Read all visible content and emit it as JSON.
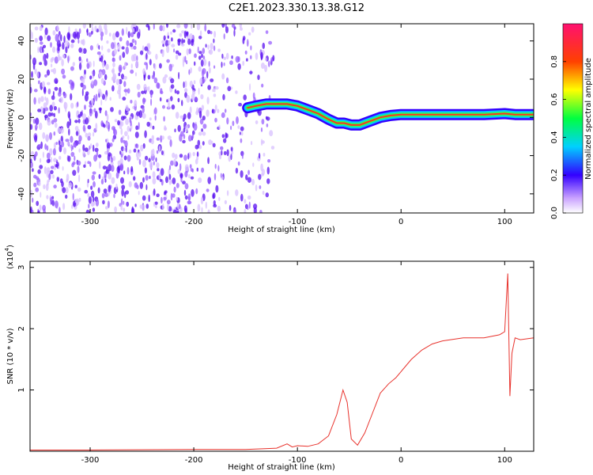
{
  "title": "C2E1.2023.330.13.38.G12",
  "colors": {
    "snr_line": "#e8322c",
    "axis": "#000000",
    "background": "#ffffff"
  },
  "chart_data": [
    {
      "type": "heatmap",
      "xlabel": "Height of straight line (km)",
      "ylabel": "Frequency (Hz)",
      "xlim": [
        -358,
        128
      ],
      "ylim": [
        -50,
        49
      ],
      "x_ticks": [
        "-300",
        "-200",
        "-100",
        "0",
        "100"
      ],
      "y_ticks": [
        "-40",
        "-20",
        "0",
        "20",
        "40"
      ],
      "x_tick_values": [
        -300,
        -200,
        -100,
        0,
        100
      ],
      "y_tick_values": [
        -40,
        -20,
        0,
        20,
        40
      ],
      "colorbar": {
        "label": "Normalized spectral amplitude",
        "range": [
          0.0,
          1.0
        ],
        "ticks": [
          "0.0",
          "0.2",
          "0.4",
          "0.6",
          "0.8"
        ],
        "tick_values": [
          0.0,
          0.2,
          0.4,
          0.6,
          0.8
        ]
      },
      "ridge_x": [
        -148,
        -140,
        -130,
        -120,
        -110,
        -100,
        -90,
        -80,
        -70,
        -62,
        -55,
        -48,
        -40,
        -30,
        -20,
        -10,
        0,
        20,
        40,
        60,
        80,
        100,
        110,
        128
      ],
      "ridge_y": [
        5,
        6,
        7,
        7,
        7,
        6,
        4,
        2,
        -1,
        -3,
        -3,
        -4,
        -4,
        -2,
        0,
        1,
        1.5,
        1.5,
        1.5,
        1.5,
        1.5,
        2,
        1.5,
        1.5
      ],
      "noise_region_x": [
        -358,
        -148
      ],
      "noise_region_y": [
        -50,
        49
      ]
    },
    {
      "type": "line",
      "xlabel": "Height of straight line (km)",
      "ylabel": "SNR (10 * v/v)",
      "multiplier_label": "(x10",
      "multiplier_exp": "4",
      "multiplier_close": ")",
      "xlim": [
        -358,
        128
      ],
      "ylim": [
        0,
        3.1
      ],
      "x_ticks": [
        "-300",
        "-200",
        "-100",
        "0",
        "100"
      ],
      "y_ticks": [
        "1",
        "2",
        "3"
      ],
      "x_tick_values": [
        -300,
        -200,
        -100,
        0,
        100
      ],
      "y_tick_values": [
        1,
        2,
        3
      ],
      "x": [
        -358,
        -300,
        -200,
        -150,
        -120,
        -110,
        -105,
        -100,
        -90,
        -80,
        -70,
        -62,
        -56,
        -52,
        -48,
        -42,
        -35,
        -28,
        -20,
        -12,
        -5,
        0,
        10,
        20,
        30,
        40,
        60,
        80,
        95,
        100,
        103,
        105,
        107,
        110,
        115,
        128
      ],
      "y": [
        0.02,
        0.02,
        0.03,
        0.03,
        0.05,
        0.12,
        0.07,
        0.09,
        0.08,
        0.12,
        0.25,
        0.6,
        1.0,
        0.8,
        0.2,
        0.1,
        0.3,
        0.6,
        0.95,
        1.1,
        1.2,
        1.3,
        1.5,
        1.65,
        1.75,
        1.8,
        1.85,
        1.85,
        1.9,
        1.95,
        2.9,
        0.9,
        1.6,
        1.85,
        1.82,
        1.85
      ]
    }
  ]
}
